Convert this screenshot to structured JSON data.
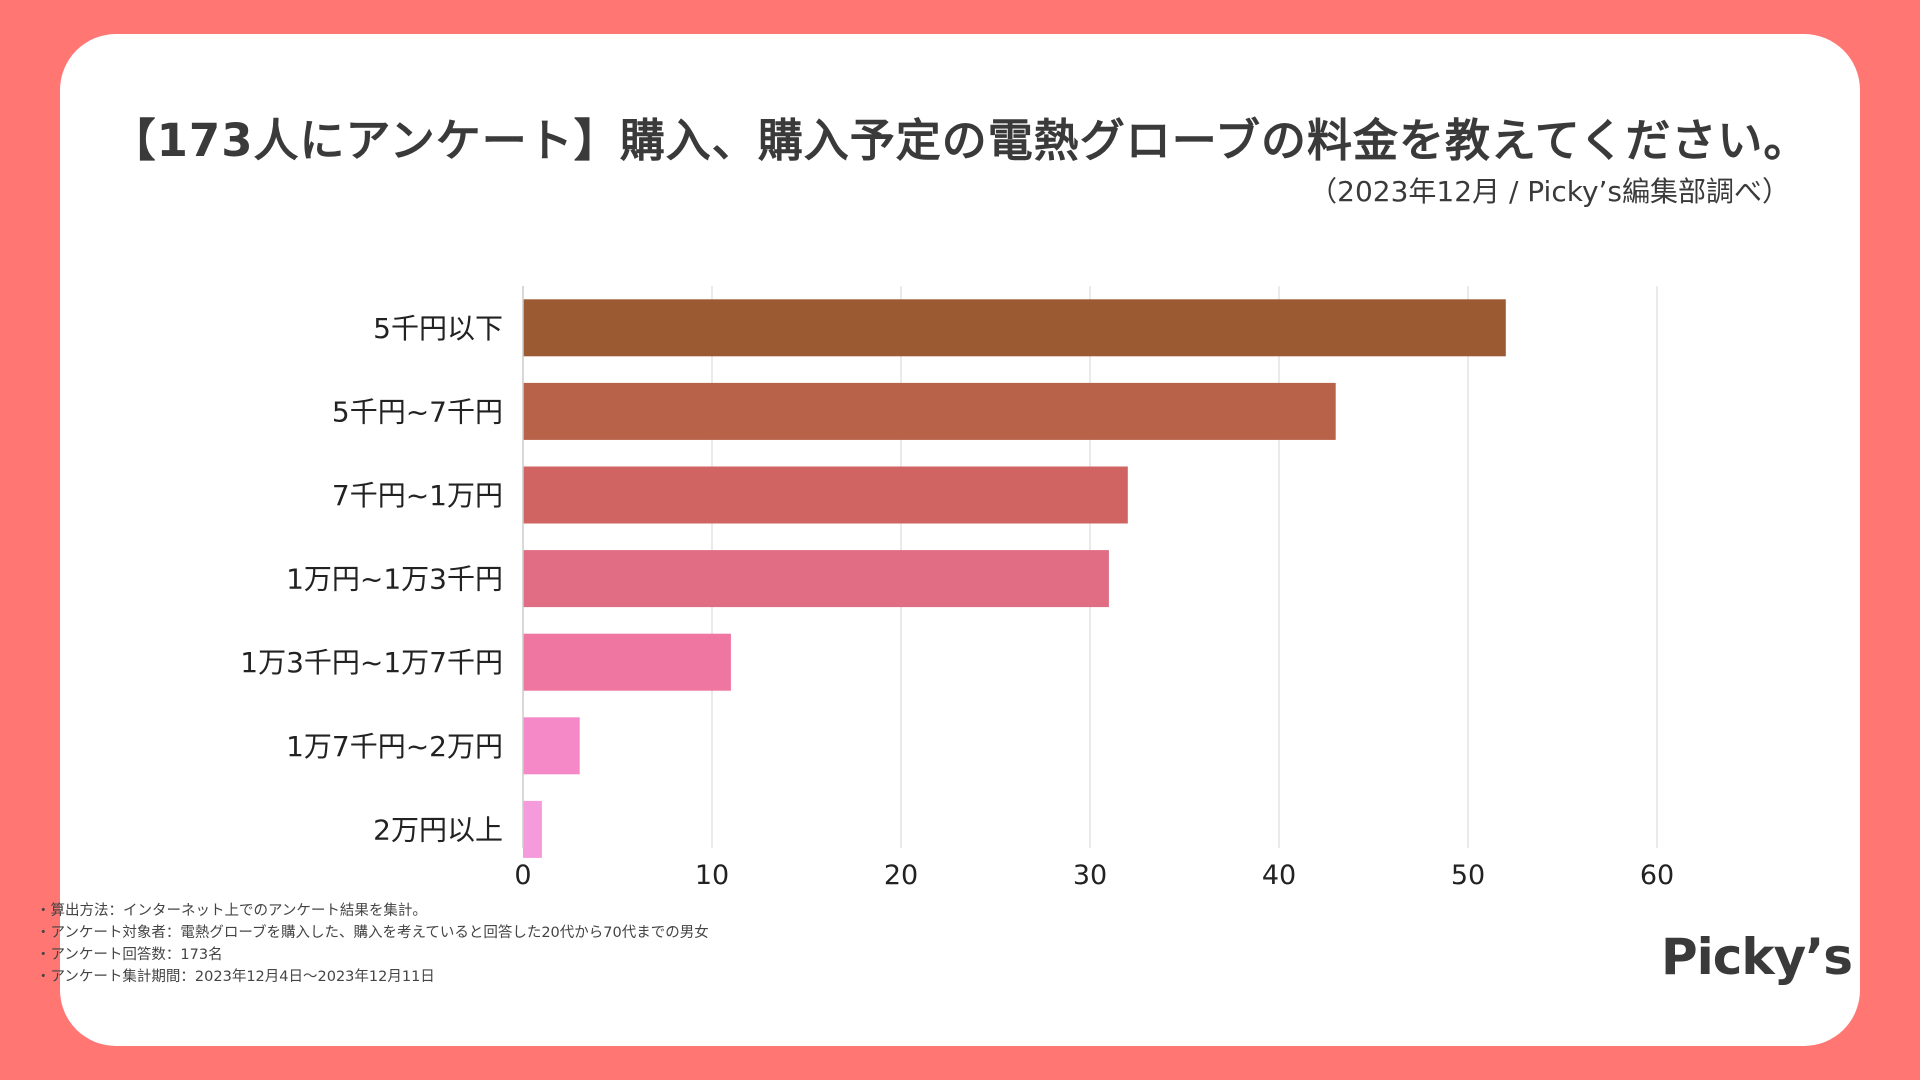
{
  "title": "【173人にアンケート】購入、購入予定の電熱グローブの料金を教えてください。",
  "subtitle": "（2023年12月 / Picky’s編集部調べ）",
  "logo": "Picky’s",
  "notes": [
    "算出方法：インターネット上でのアンケート結果を集計。",
    "アンケート対象者：電熱グローブを購入した、購入を考えていると回答した20代から70代までの男女",
    "アンケート回答数：173名",
    "アンケート集計期間：2023年12月4日〜2023年12月11日"
  ],
  "chart_data": {
    "type": "bar",
    "orientation": "horizontal",
    "categories": [
      "5千円以下",
      "5千円~7千円",
      "7千円~1万円",
      "1万円~1万3千円",
      "1万3千円~1万7千円",
      "1万7千円~2万円",
      "2万円以上"
    ],
    "values": [
      52,
      43,
      32,
      31,
      11,
      3,
      1
    ],
    "colors": [
      "#9C5A33",
      "#B9624A",
      "#CF6462",
      "#E06D83",
      "#EE76A0",
      "#F589C7",
      "#F59ADB"
    ],
    "xlim": [
      0,
      60
    ],
    "xticks": [
      0,
      10,
      20,
      30,
      40,
      50,
      60
    ],
    "grid": true,
    "xlabel": "",
    "ylabel": ""
  }
}
